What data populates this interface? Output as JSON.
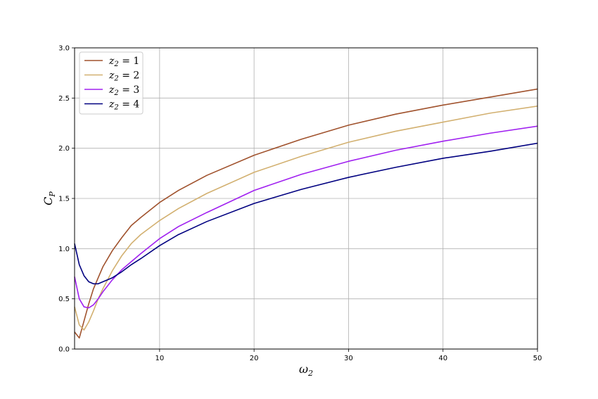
{
  "chart_data": {
    "type": "line",
    "xlabel": "ω",
    "xlabel_sub": "2",
    "ylabel": "C",
    "ylabel_sub": "P",
    "xlim": [
      1,
      50
    ],
    "ylim": [
      0,
      3.0
    ],
    "x_ticks": [
      10,
      20,
      30,
      40,
      50
    ],
    "x_tick_labels": [
      "10",
      "20",
      "30",
      "40",
      "50"
    ],
    "y_ticks": [
      0,
      0.5,
      1.0,
      1.5,
      2.0,
      2.5,
      3.0
    ],
    "y_tick_labels": [
      "0.0",
      "0.5",
      "1.0",
      "1.5",
      "2.0",
      "2.5",
      "3.0"
    ],
    "grid": true,
    "legend_placement": "top-left",
    "series": [
      {
        "name": "z2 = 1",
        "legend_var": "z",
        "legend_sub": "2",
        "legend_eq": " = 1",
        "color": "#a0522d",
        "x": [
          1,
          1.5,
          2,
          2.5,
          3,
          3.5,
          4,
          5,
          6,
          7,
          8,
          10,
          12,
          15,
          20,
          25,
          30,
          35,
          40,
          45,
          50
        ],
        "y": [
          0.17,
          0.11,
          0.28,
          0.45,
          0.6,
          0.71,
          0.82,
          0.98,
          1.11,
          1.23,
          1.31,
          1.46,
          1.58,
          1.73,
          1.93,
          2.09,
          2.23,
          2.34,
          2.43,
          2.51,
          2.59
        ]
      },
      {
        "name": "z2 = 2",
        "legend_var": "z",
        "legend_sub": "2",
        "legend_eq": " = 2",
        "color": "#d2b070",
        "x": [
          1,
          1.5,
          2,
          2.5,
          3,
          3.5,
          4,
          5,
          6,
          7,
          8,
          10,
          12,
          15,
          20,
          25,
          30,
          35,
          40,
          45,
          50
        ],
        "y": [
          0.42,
          0.24,
          0.19,
          0.27,
          0.38,
          0.5,
          0.6,
          0.78,
          0.93,
          1.05,
          1.14,
          1.28,
          1.4,
          1.55,
          1.76,
          1.92,
          2.06,
          2.17,
          2.26,
          2.35,
          2.42
        ]
      },
      {
        "name": "z2 = 3",
        "legend_var": "z",
        "legend_sub": "2",
        "legend_eq": " = 3",
        "color": "#a020f0",
        "x": [
          1,
          1.5,
          2,
          2.5,
          3,
          3.5,
          4,
          5,
          6,
          7,
          8,
          10,
          12,
          15,
          20,
          25,
          30,
          35,
          40,
          45,
          50
        ],
        "y": [
          0.72,
          0.5,
          0.42,
          0.41,
          0.44,
          0.5,
          0.57,
          0.69,
          0.79,
          0.87,
          0.95,
          1.1,
          1.22,
          1.36,
          1.58,
          1.74,
          1.87,
          1.98,
          2.07,
          2.15,
          2.22
        ]
      },
      {
        "name": "z2 = 4",
        "legend_var": "z",
        "legend_sub": "2",
        "legend_eq": " = 4",
        "color": "#000080",
        "x": [
          1,
          1.5,
          2,
          2.5,
          3,
          3.5,
          4,
          5,
          6,
          7,
          8,
          10,
          12,
          15,
          20,
          25,
          30,
          35,
          40,
          45,
          50
        ],
        "y": [
          1.05,
          0.84,
          0.73,
          0.67,
          0.65,
          0.65,
          0.67,
          0.71,
          0.77,
          0.84,
          0.9,
          1.03,
          1.14,
          1.27,
          1.45,
          1.59,
          1.71,
          1.81,
          1.9,
          1.97,
          2.05
        ]
      }
    ]
  }
}
